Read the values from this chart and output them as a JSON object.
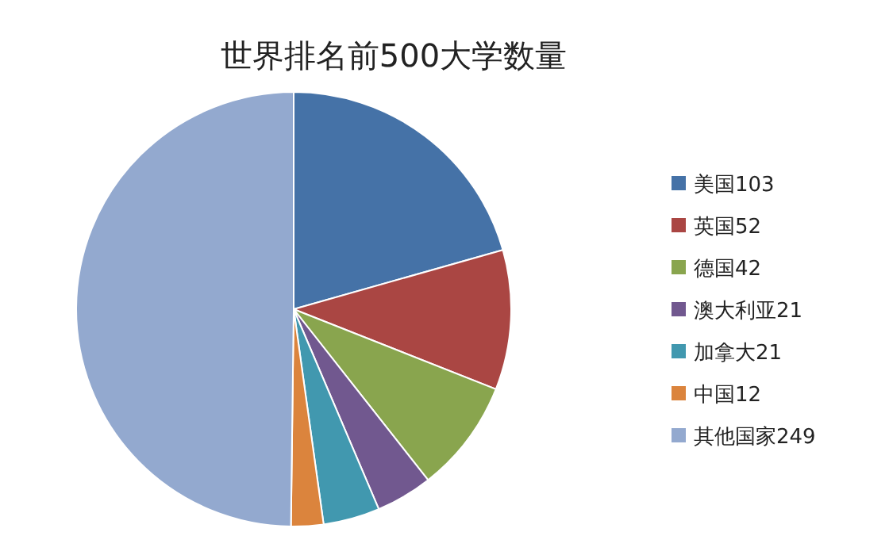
{
  "chart_data": {
    "type": "pie",
    "title": "世界排名前500大学数量",
    "categories": [
      "美国103",
      "英国52",
      "德国42",
      "澳大利亚21",
      "加拿大21",
      "中国12",
      "其他国家249"
    ],
    "values": [
      103,
      52,
      42,
      21,
      21,
      12,
      249
    ],
    "colors": [
      "#4572a7",
      "#aa4643",
      "#89a54e",
      "#71588f",
      "#4198af",
      "#db843d",
      "#93a9cf"
    ],
    "legend": "right"
  }
}
